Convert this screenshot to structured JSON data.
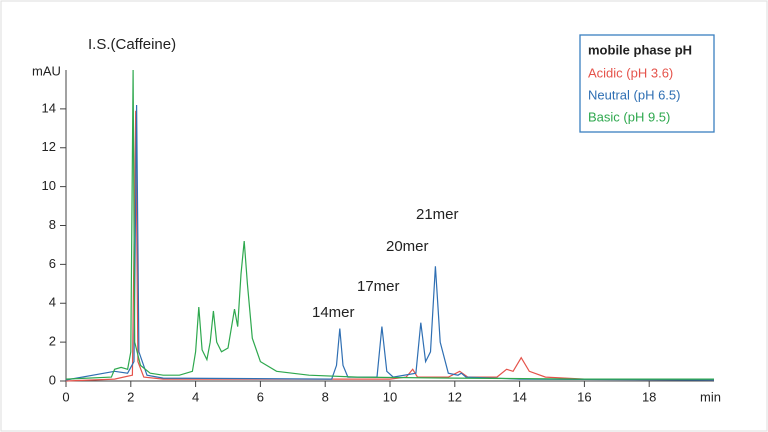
{
  "chart_data": {
    "type": "line",
    "y_label": "mAU",
    "x_label": "min",
    "annotations": [
      "I.S.(Caffeine)",
      "14mer",
      "17mer",
      "20mer",
      "21mer"
    ],
    "legend_title": "mobile phase pH",
    "legend_position": "upper right",
    "xlim": [
      0,
      20
    ],
    "xticks": [
      0,
      2,
      4,
      6,
      8,
      10,
      12,
      14,
      16,
      18
    ],
    "ylim": [
      0,
      16
    ],
    "yticks": [
      0,
      2,
      4,
      6,
      8,
      10,
      12,
      14
    ],
    "series": [
      {
        "name": "Acidic (pH 3.6)",
        "color": "#e5534b",
        "x": [
          0,
          1.5,
          2.05,
          2.15,
          2.22,
          2.4,
          3,
          10,
          10.5,
          10.7,
          10.85,
          11.8,
          12.15,
          12.4,
          13.3,
          13.6,
          13.8,
          14.05,
          14.3,
          14.8,
          16,
          20
        ],
        "values": [
          0,
          0.1,
          0.3,
          13.9,
          1,
          0.2,
          0.1,
          0.1,
          0.2,
          0.6,
          0.2,
          0.2,
          0.5,
          0.2,
          0.2,
          0.6,
          0.5,
          1.2,
          0.5,
          0.2,
          0.1,
          0.05
        ]
      },
      {
        "name": "Neutral (pH 6.5)",
        "color": "#2f6fb3",
        "x": [
          0,
          1.5,
          1.9,
          2.1,
          2.18,
          2.25,
          2.5,
          3,
          8.2,
          8.35,
          8.45,
          8.55,
          8.7,
          9.6,
          9.75,
          9.9,
          10.1,
          10.8,
          10.95,
          11.1,
          11.25,
          11.4,
          11.55,
          11.8,
          12.1,
          12.2,
          12.35,
          14,
          20
        ],
        "values": [
          0.05,
          0.5,
          0.4,
          1,
          14.2,
          1.5,
          0.3,
          0.15,
          0.1,
          0.8,
          2.7,
          0.8,
          0.2,
          0.2,
          2.8,
          0.5,
          0.2,
          0.4,
          3.0,
          1.0,
          1.5,
          5.9,
          2.0,
          0.4,
          0.3,
          0.4,
          0.2,
          0.1,
          0.05
        ]
      },
      {
        "name": "Basic (pH 9.5)",
        "color": "#2ea84e",
        "x": [
          0,
          1.4,
          1.5,
          1.7,
          1.9,
          2.0,
          2.07,
          2.12,
          2.3,
          2.6,
          3.0,
          3.5,
          3.9,
          4.0,
          4.1,
          4.2,
          4.35,
          4.45,
          4.55,
          4.65,
          4.8,
          5.0,
          5.15,
          5.2,
          5.3,
          5.4,
          5.5,
          5.6,
          5.75,
          6.0,
          6.5,
          7.5,
          9,
          12,
          16,
          20
        ],
        "values": [
          0.1,
          0.2,
          0.6,
          0.7,
          0.6,
          1.5,
          16.0,
          2,
          0.8,
          0.4,
          0.3,
          0.3,
          0.5,
          1.5,
          3.8,
          1.6,
          1.1,
          2,
          3.6,
          2,
          1.5,
          1.7,
          3.2,
          3.7,
          2.8,
          5.5,
          7.2,
          5,
          2.2,
          1.0,
          0.5,
          0.3,
          0.2,
          0.15,
          0.1,
          0.1
        ]
      }
    ]
  }
}
